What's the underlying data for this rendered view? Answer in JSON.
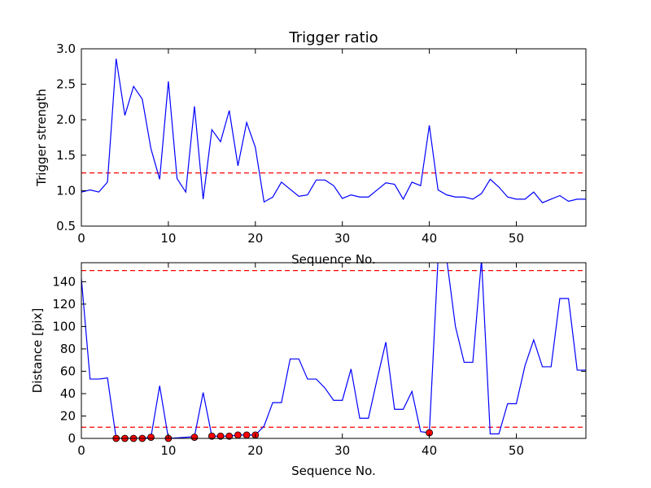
{
  "chart_data": [
    {
      "type": "line",
      "title": "Trigger ratio",
      "xlabel": "Sequence No.",
      "ylabel": "Trigger strength",
      "xlim": [
        0,
        58
      ],
      "ylim": [
        0.5,
        3.0
      ],
      "xticks": [
        0,
        10,
        20,
        30,
        40,
        50
      ],
      "xtick_labels": [
        "0",
        "10",
        "20",
        "30",
        "40",
        "50"
      ],
      "yticks": [
        0.5,
        1.0,
        1.5,
        2.0,
        2.5,
        3.0
      ],
      "ytick_labels": [
        "0.5",
        "1.0",
        "1.5",
        "2.0",
        "2.5",
        "3.0"
      ],
      "line_color": "#0000ff",
      "threshold_color": "#ff0000",
      "series": [
        {
          "x": [
            0,
            1,
            2,
            3,
            4,
            5,
            6,
            7,
            8,
            9,
            10,
            11,
            12,
            13,
            14,
            15,
            16,
            17,
            18,
            19,
            20,
            21,
            22,
            23,
            24,
            25,
            26,
            27,
            28,
            29,
            30,
            31,
            32,
            33,
            34,
            35,
            36,
            37,
            38,
            39,
            40,
            41,
            42,
            43,
            44,
            45,
            46,
            47,
            48,
            49,
            50,
            51,
            52,
            53,
            54,
            55,
            56,
            57,
            58
          ],
          "y": [
            0.98,
            1.01,
            0.98,
            1.12,
            2.86,
            2.06,
            2.47,
            2.29,
            1.59,
            1.16,
            2.54,
            1.17,
            0.98,
            2.19,
            0.88,
            1.86,
            1.69,
            2.13,
            1.35,
            1.96,
            1.61,
            0.84,
            0.91,
            1.12,
            1.02,
            0.92,
            0.94,
            1.15,
            1.15,
            1.07,
            0.89,
            0.94,
            0.91,
            0.91,
            1.01,
            1.11,
            1.09,
            0.88,
            1.12,
            1.07,
            1.92,
            1.01,
            0.94,
            0.91,
            0.91,
            0.88,
            0.96,
            1.16,
            1.05,
            0.91,
            0.88,
            0.88,
            0.98,
            0.83,
            0.88,
            0.93,
            0.85,
            0.88,
            0.88
          ]
        }
      ],
      "threshold_lines": [
        1.25
      ]
    },
    {
      "type": "line",
      "title": "",
      "xlabel": "Sequence No.",
      "ylabel": "Distance [pix]",
      "xlim": [
        0,
        58
      ],
      "ylim": [
        0,
        157
      ],
      "xticks": [
        0,
        10,
        20,
        30,
        40,
        50
      ],
      "xtick_labels": [
        "0",
        "10",
        "20",
        "30",
        "40",
        "50"
      ],
      "yticks": [
        0,
        20,
        40,
        60,
        80,
        100,
        120,
        140
      ],
      "ytick_labels": [
        "0",
        "20",
        "40",
        "60",
        "80",
        "100",
        "120",
        "140"
      ],
      "line_color": "#0000ff",
      "marker_color": "#ff0000",
      "threshold_color": "#ff0000",
      "series": [
        {
          "x": [
            0,
            1,
            2,
            3,
            4,
            5,
            6,
            7,
            8,
            9,
            10,
            11,
            12,
            13,
            14,
            15,
            16,
            17,
            18,
            19,
            20,
            21,
            22,
            23,
            24,
            25,
            26,
            27,
            28,
            29,
            30,
            31,
            32,
            33,
            34,
            35,
            36,
            37,
            38,
            39,
            40,
            41,
            42,
            43,
            44,
            45,
            46,
            47,
            48,
            49,
            50,
            51,
            52,
            53,
            54,
            55,
            56,
            57,
            58
          ],
          "y": [
            143,
            53,
            53,
            54,
            0,
            0,
            0,
            0,
            1,
            47,
            0,
            0.5,
            1,
            1.5,
            41,
            2,
            2,
            2,
            3,
            3,
            3,
            11,
            32,
            32,
            71,
            71,
            53,
            53,
            45,
            34,
            34,
            62,
            18,
            18,
            53,
            86,
            26,
            26,
            42,
            6,
            5,
            160,
            160,
            100,
            68,
            68,
            160,
            4,
            4,
            31,
            31,
            65,
            88,
            64,
            64,
            125,
            125,
            61,
            61
          ]
        },
        {
          "marker_x": [
            4,
            5,
            6,
            7,
            8,
            10,
            13,
            15,
            16,
            17,
            18,
            19,
            20,
            40
          ],
          "marker_y": [
            0,
            0,
            0,
            0,
            1,
            0,
            1,
            2,
            2,
            2,
            3,
            3,
            3,
            5
          ]
        }
      ],
      "threshold_lines": [
        150,
        10
      ]
    }
  ]
}
